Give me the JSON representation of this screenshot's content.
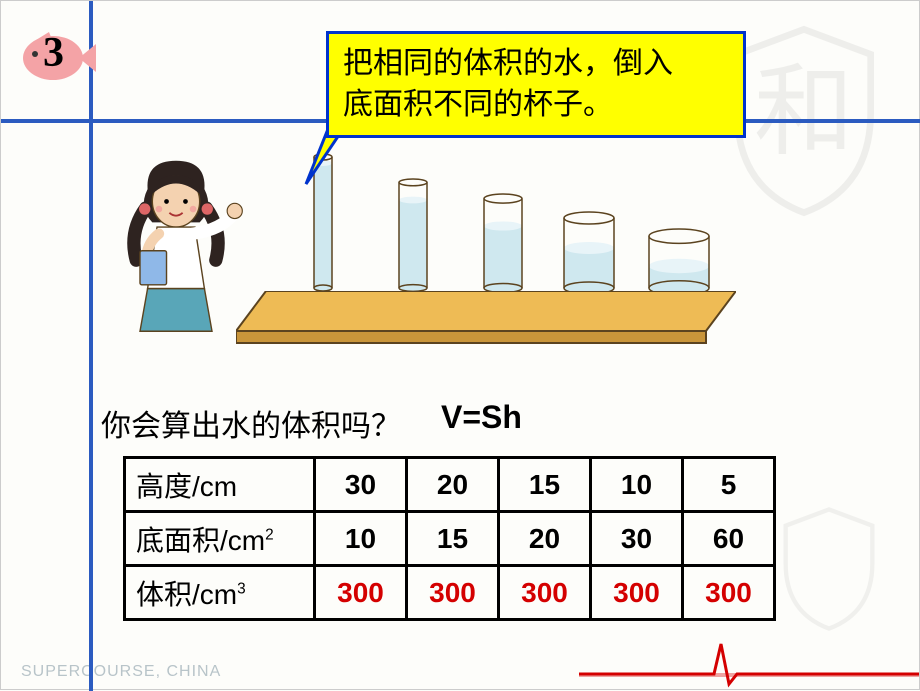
{
  "badge_number": "3",
  "bubble_line1": "把相同的体积的水，倒入",
  "bubble_line2": "底面积不同的杯子。",
  "question_text": "你会算出水的体积吗？",
  "formula": "V=Sh",
  "table": {
    "row_labels": {
      "height": "高度/cm",
      "area": "底面积/cm",
      "volume": "体积/cm"
    },
    "area_exp": "2",
    "volume_exp": "3",
    "height": [
      "30",
      "20",
      "15",
      "10",
      "5"
    ],
    "area": [
      "10",
      "15",
      "20",
      "30",
      "60"
    ],
    "volume": [
      "300",
      "300",
      "300",
      "300",
      "300"
    ]
  },
  "footer": "SUPERCOURSE, CHINA",
  "colors": {
    "border_blue": "#2b5bc0",
    "bubble_bg": "#ffff00",
    "bubble_border": "#0033cc",
    "volume_red": "#d40000",
    "fish_pink": "#f4a3a6",
    "wood": "#eebb55",
    "water": "#cfe8ef",
    "ecg_red": "#d40000",
    "girl_hair": "#2e2320",
    "girl_skin": "#f4d2b0",
    "girl_top": "#ffffff",
    "girl_skirt": "#59a6b8"
  },
  "cylinders": [
    {
      "w": 18,
      "h": 130,
      "water": 125
    },
    {
      "w": 28,
      "h": 105,
      "water": 88
    },
    {
      "w": 38,
      "h": 90,
      "water": 62
    },
    {
      "w": 50,
      "h": 72,
      "water": 40
    },
    {
      "w": 60,
      "h": 55,
      "water": 22
    }
  ]
}
